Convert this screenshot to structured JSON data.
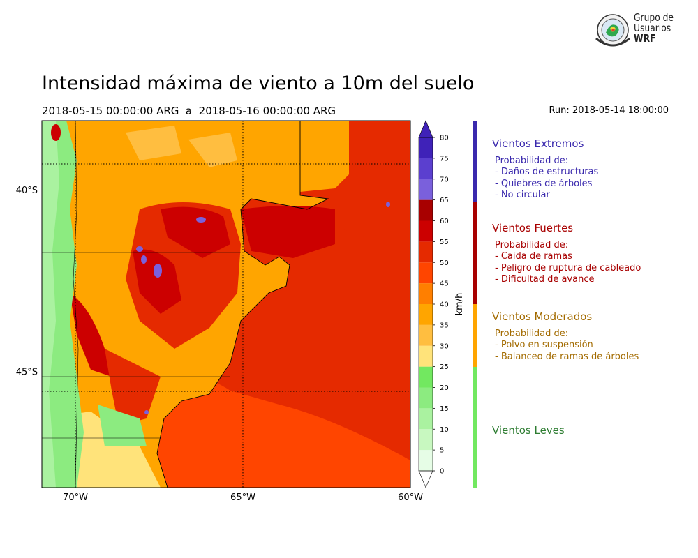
{
  "title": "Intensidad máxima de viento a 10m del suelo",
  "subtitle": "2018-05-15 00:00:00 ARG  a  2018-05-16 00:00:00 ARG",
  "run": "Run: 2018-05-14 18:00:00",
  "logo": {
    "line1": "Grupo de",
    "line2": "Usuarios",
    "line3": "WRF"
  },
  "map": {
    "lon_range": [
      -71,
      -60
    ],
    "lat_range": [
      -48.2,
      -38.1
    ],
    "lat_ticks": [
      {
        "value": -40,
        "label": "40°S"
      },
      {
        "value": -45,
        "label": "45°S"
      }
    ],
    "lon_ticks": [
      {
        "value": -70,
        "label": "70°W"
      },
      {
        "value": -65,
        "label": "65°W"
      },
      {
        "value": -60,
        "label": "60°W"
      }
    ]
  },
  "colorbar": {
    "label": "km/h",
    "levels": [
      0,
      5,
      10,
      15,
      20,
      25,
      30,
      35,
      40,
      45,
      50,
      55,
      60,
      65,
      70,
      75,
      80
    ],
    "colors": [
      "#e6fde6",
      "#c8f8c0",
      "#aaf2a0",
      "#8ceb80",
      "#72e860",
      "#ffe37a",
      "#ffbe40",
      "#ffa500",
      "#ff7f00",
      "#ff4500",
      "#e52a00",
      "#cc0000",
      "#a80000",
      "#7a60dc",
      "#5b3fcf",
      "#3f22b8"
    ],
    "extend_low_color": "#ffffff",
    "extend_high_color": "#3f22b8"
  },
  "legend": [
    {
      "title": "Vientos Extremos",
      "lines": [
        "Probabilidad de:",
        "- Daños de estructuras",
        "- Quiebres de árboles",
        "- No circular"
      ],
      "color": "#3a29ad",
      "bar_color": "#3a29ad"
    },
    {
      "title": "Vientos Fuertes",
      "lines": [
        "Probabilidad de:",
        "- Caida de ramas",
        "- Peligro de ruptura de cableado",
        "- Dificultad de avance"
      ],
      "color": "#a80000",
      "bar_color": "#a80000"
    },
    {
      "title": "Vientos Moderados",
      "lines": [
        "Probabilidad de:",
        "- Polvo en suspensión",
        "- Balanceo de ramas de árboles"
      ],
      "color": "#a36b00",
      "bar_color": "#ffa500"
    },
    {
      "title": "Vientos Leves",
      "lines": [],
      "color": "#2e7d32",
      "bar_color": "#72e860"
    }
  ]
}
